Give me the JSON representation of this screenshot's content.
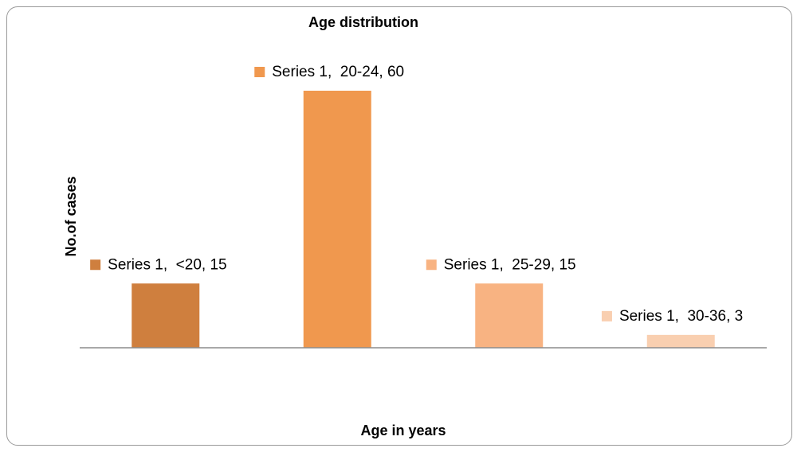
{
  "chart_data": {
    "type": "bar",
    "title": "Age distribution",
    "xlabel": "Age in years",
    "ylabel": "No.of cases",
    "ylim": [
      0,
      60
    ],
    "grid": false,
    "series": [
      {
        "name": "Series 1",
        "values": [
          15,
          60,
          15,
          3
        ]
      }
    ],
    "categories": [
      "<20",
      "20-24",
      "25-29",
      "30-36"
    ],
    "data_labels": [
      "Series 1,  <20, 15",
      "Series 1,  20-24, 60",
      "Series 1,  25-29, 15",
      "Series 1,  30-36, 3"
    ],
    "colors": [
      "#cf7f3e",
      "#f0984e",
      "#f8b382",
      "#f9cfb0"
    ]
  }
}
